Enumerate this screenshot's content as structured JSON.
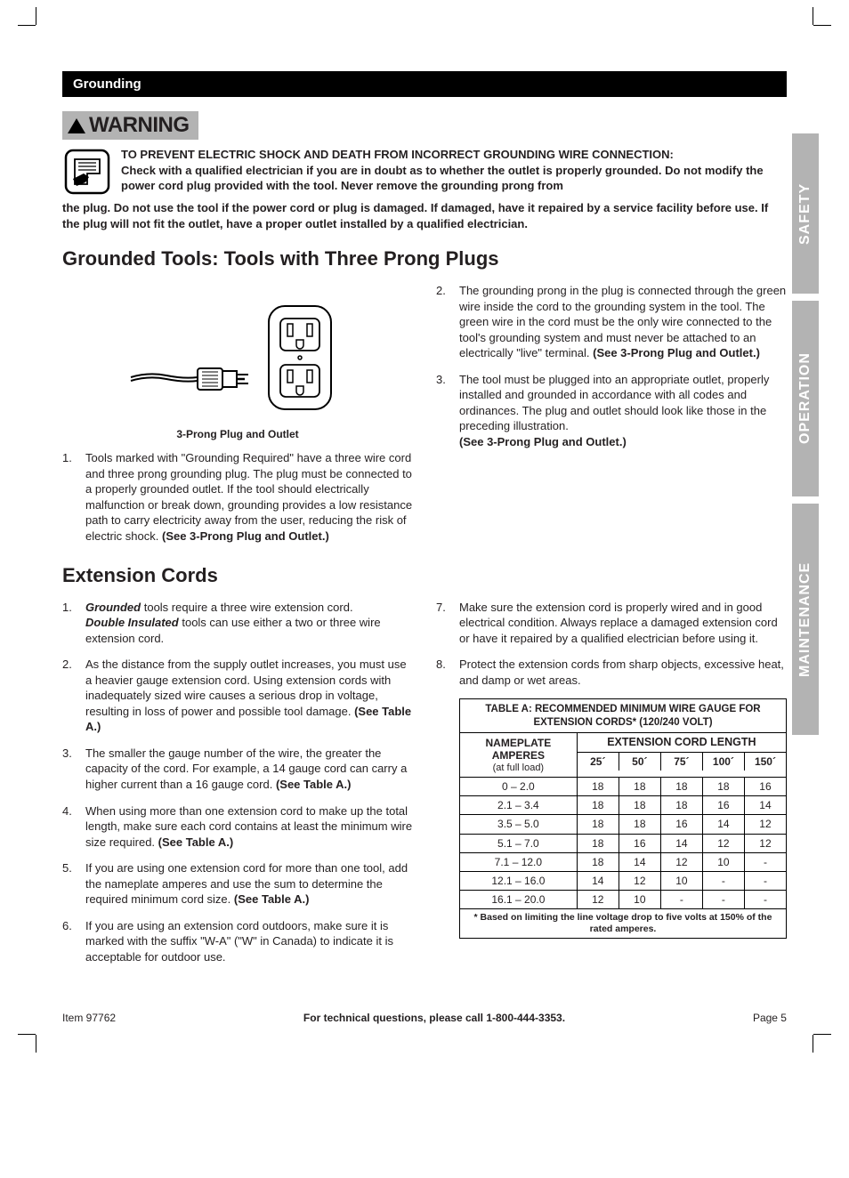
{
  "section_header": "Grounding",
  "warning_label": "WARNING",
  "warning_title": "TO PREVENT ELECTRIC SHOCK AND DEATH FROM INCORRECT GROUNDING WIRE CONNECTION:",
  "warning_body1": "Check with a qualified electrician if you are in doubt as to whether the outlet is properly grounded.  Do not modify the power cord plug provided with the tool.  Never remove the grounding prong from",
  "warning_body2": "the plug.  Do not use the tool if the power cord or plug is damaged.  If damaged, have it repaired by a service facility before use.  If the plug will not fit the outlet, have a proper outlet installed by a qualified electrician.",
  "title_grounded": "Grounded Tools: Tools with Three Prong Plugs",
  "figure_caption": "3-Prong Plug and Outlet",
  "grounded_items": {
    "i1": "Tools marked with \"Grounding Required\" have a three wire cord and three prong grounding plug.  The plug must be connected to a properly grounded outlet.  If the tool should electrically malfunction or break down, grounding provides a low resistance path to carry electricity away from the user, reducing the risk of electric shock.  ",
    "i1_ref": "(See 3-Prong Plug and Outlet.)",
    "i2": "The grounding prong in the plug is connected through the green wire inside the cord to the grounding system in the tool.  The green wire in the cord must be the only wire connected to the tool's grounding system and must never be attached to an electrically \"live\" terminal.  ",
    "i2_ref": "(See 3-Prong Plug and Outlet.)",
    "i3a": "The tool must be plugged into an appropriate outlet, properly installed and grounded in accordance with all codes and ordinances.  The plug and outlet should look like those in the preceding illustration.",
    "i3_ref": "(See 3-Prong Plug and Outlet.)"
  },
  "title_ext": "Extension Cords",
  "ext_items": {
    "i1a": "Grounded",
    "i1b": " tools require a three wire extension cord.  ",
    "i1c": "Double Insulated",
    "i1d": " tools can use either a two or three wire extension cord.",
    "i2": "As the distance from the supply outlet increases, you must use a heavier gauge extension cord.  Using extension cords with inadequately sized wire causes a serious drop in voltage, resulting in loss of power and possible tool damage.  ",
    "i2_ref": "(See Table A.)",
    "i3": "The smaller the gauge number of the wire, the greater the capacity of the cord.  For example, a 14 gauge cord can carry a higher current than a 16 gauge cord.  ",
    "i3_ref": "(See Table A.)",
    "i4": "When using more than one extension cord to make up the total length, make sure each cord contains at least the minimum wire size required.  ",
    "i4_ref": "(See Table A.)",
    "i5": "If you are using one extension cord for more than one tool, add the nameplate amperes and use the sum to determine the required minimum cord size.  ",
    "i5_ref": "(See Table A.)",
    "i6": "If you are using an extension cord outdoors, make sure it is marked with the suffix \"W-A\" (\"W\" in Canada) to indicate it is acceptable for outdoor use.",
    "i7": "Make sure the extension cord is properly wired and in good electrical condition.  Always replace a damaged extension cord or have it repaired by a qualified electrician before using it.",
    "i8": "Protect the extension cords from sharp objects, excessive heat, and damp or wet areas."
  },
  "table": {
    "title": "TABLE A:  RECOMMENDED MINIMUM WIRE GAUGE FOR EXTENSION CORDS* (120/240 VOLT)",
    "np_label": "NAMEPLATE AMPERES",
    "np_sub": "(at full load)",
    "ext_label": "EXTENSION CORD LENGTH",
    "lengths": [
      "25´",
      "50´",
      "75´",
      "100´",
      "150´"
    ],
    "rows": [
      {
        "amp": "0 – 2.0",
        "v": [
          "18",
          "18",
          "18",
          "18",
          "16"
        ]
      },
      {
        "amp": "2.1 – 3.4",
        "v": [
          "18",
          "18",
          "18",
          "16",
          "14"
        ]
      },
      {
        "amp": "3.5 – 5.0",
        "v": [
          "18",
          "18",
          "16",
          "14",
          "12"
        ]
      },
      {
        "amp": "5.1 – 7.0",
        "v": [
          "18",
          "16",
          "14",
          "12",
          "12"
        ]
      },
      {
        "amp": "7.1 – 12.0",
        "v": [
          "18",
          "14",
          "12",
          "10",
          "-"
        ]
      },
      {
        "amp": "12.1 – 16.0",
        "v": [
          "14",
          "12",
          "10",
          "-",
          "-"
        ]
      },
      {
        "amp": "16.1 – 20.0",
        "v": [
          "12",
          "10",
          "-",
          "-",
          "-"
        ]
      }
    ],
    "footnote": "* Based on limiting the line voltage drop to five volts at 150% of the rated amperes."
  },
  "tabs": {
    "safety": "SAFETY",
    "operation": "OPERATION",
    "maintenance": "MAINTENANCE"
  },
  "footer": {
    "left": "Item 97762",
    "mid": "For technical questions, please call 1-800-444-3353.",
    "right": "Page 5"
  },
  "colors": {
    "black": "#000000",
    "gray": "#b3b3b3",
    "text": "#231f20",
    "white": "#ffffff"
  }
}
